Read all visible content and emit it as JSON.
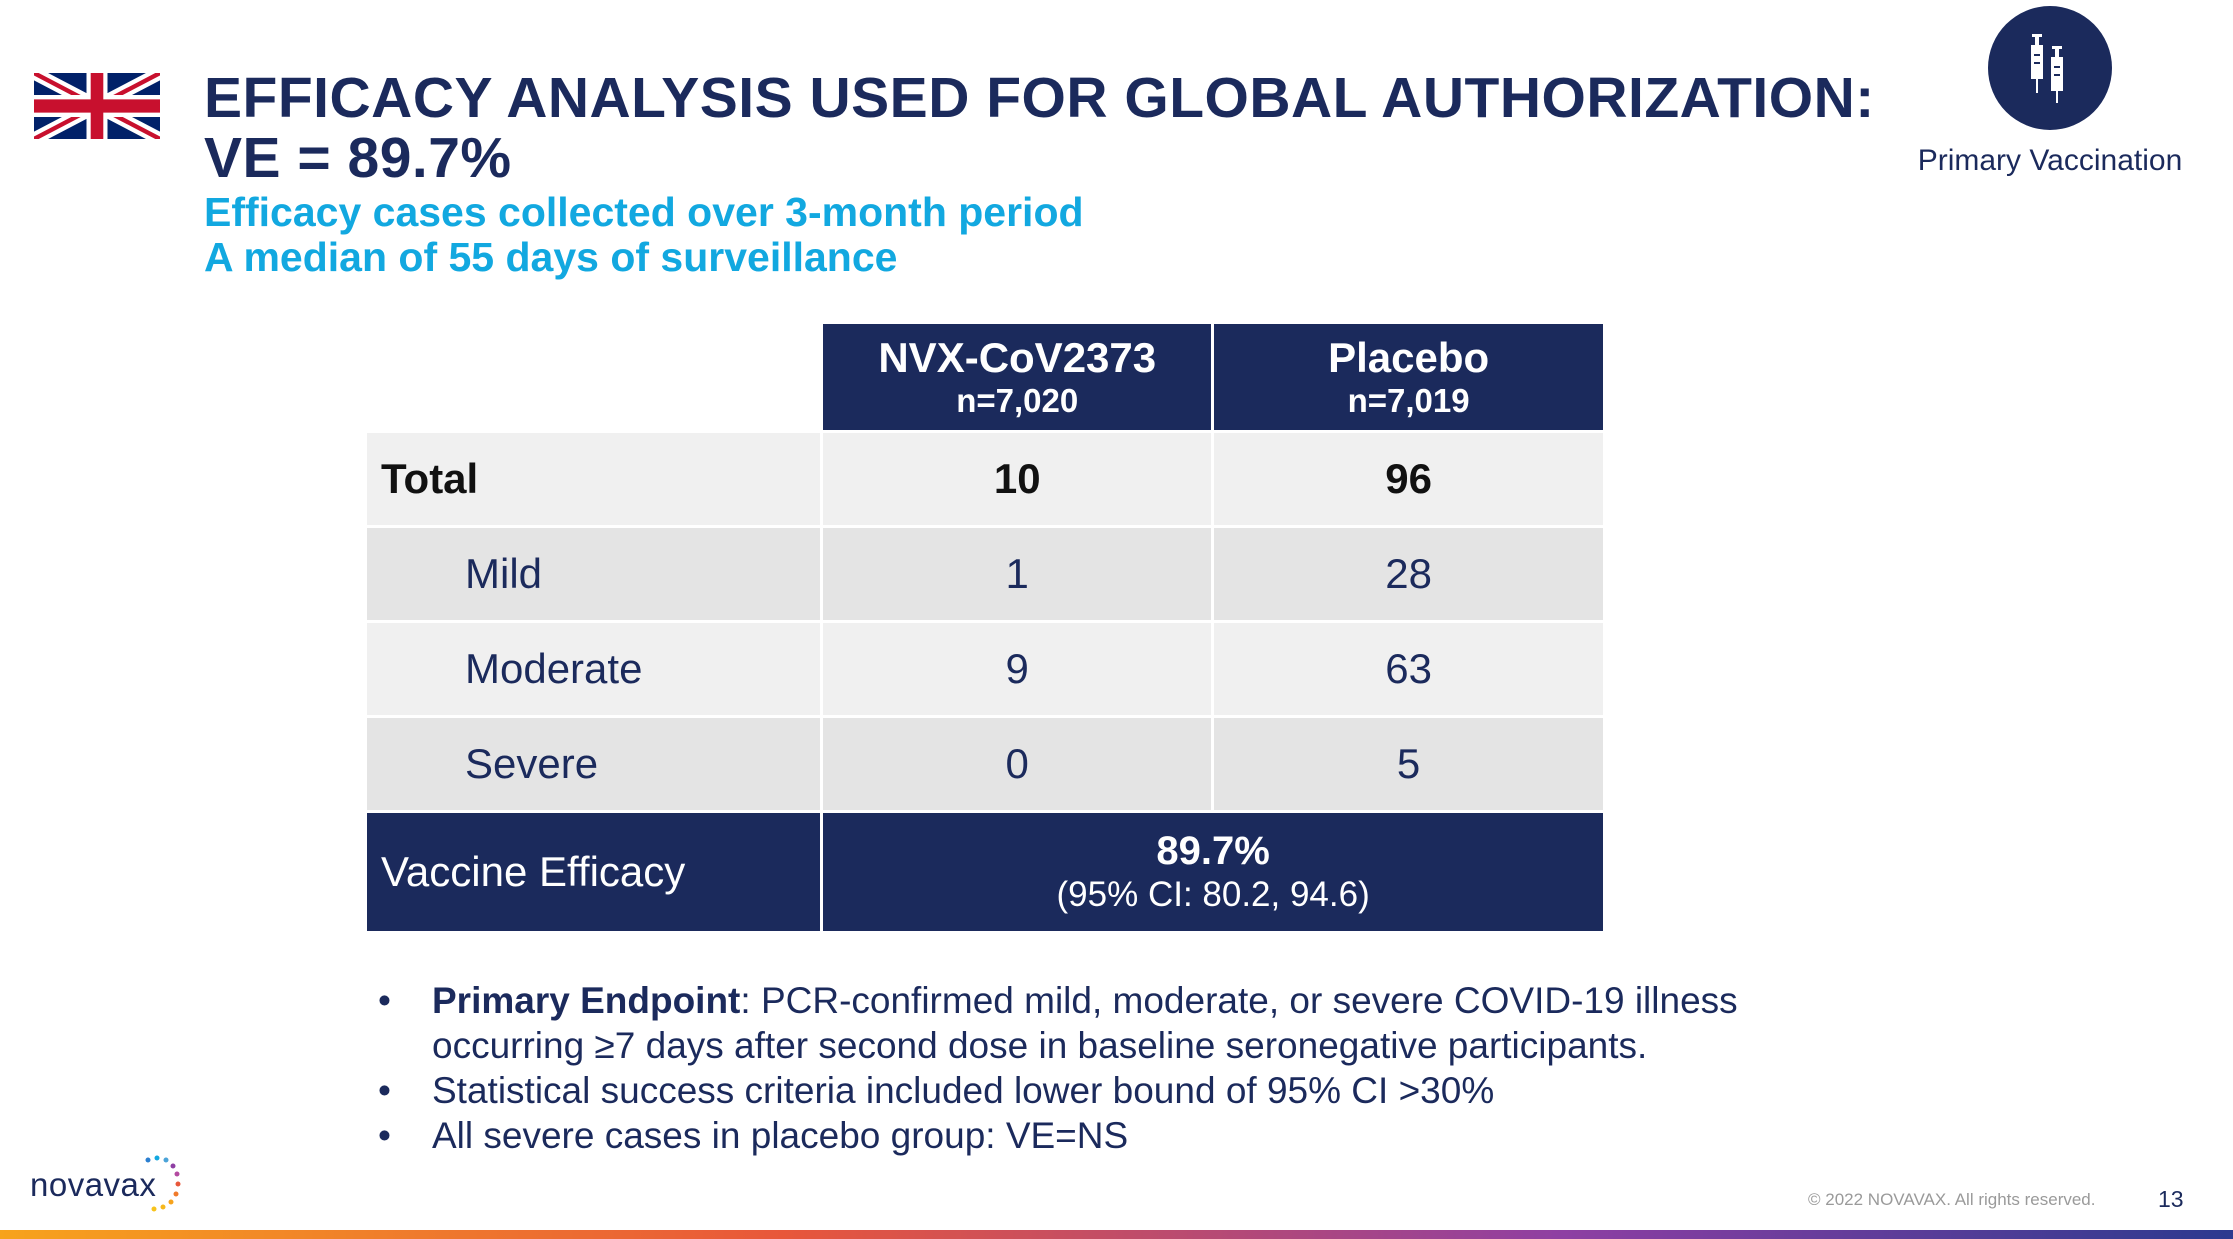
{
  "header": {
    "title_line1": "EFFICACY ANALYSIS USED FOR GLOBAL AUTHORIZATION:",
    "title_line2": "VE = 89.7%",
    "subtitle_line1": "Efficacy cases collected over 3-month period",
    "subtitle_line2": "A median of 55 days of surveillance"
  },
  "badge": {
    "icon": "syringe-icon",
    "label": "Primary Vaccination"
  },
  "flag": {
    "icon": "uk-flag-icon"
  },
  "table": {
    "columns": [
      {
        "name": "NVX-CoV2373",
        "n": "n=7,020"
      },
      {
        "name": "Placebo",
        "n": "n=7,019"
      }
    ],
    "rows": [
      {
        "label": "Total",
        "values": [
          "10",
          "96"
        ]
      },
      {
        "label": "Mild",
        "values": [
          "1",
          "28"
        ]
      },
      {
        "label": "Moderate",
        "values": [
          "9",
          "63"
        ]
      },
      {
        "label": "Severe",
        "values": [
          "0",
          "5"
        ]
      }
    ],
    "efficacy": {
      "label": "Vaccine Efficacy",
      "value": "89.7%",
      "ci": "(95% CI: 80.2, 94.6)"
    }
  },
  "notes": [
    {
      "bold": "Primary Endpoint",
      "text_line1": ": PCR-confirmed mild, moderate, or severe COVID-19 illness",
      "text_line2": "occurring ≥7 days after second dose in baseline seronegative participants."
    },
    {
      "text": "Statistical success criteria included lower bound of 95% CI >30%"
    },
    {
      "text": "All severe cases in placebo group: VE=NS"
    }
  ],
  "footer": {
    "logo_text": "novavax",
    "copyright": "© 2022 NOVAVAX. All rights reserved.",
    "page_number": "13"
  },
  "colors": {
    "navy": "#1b2a5c",
    "accent": "#12a8e0",
    "row_light": "#f0f0f0",
    "row_dark": "#e4e4e4"
  }
}
